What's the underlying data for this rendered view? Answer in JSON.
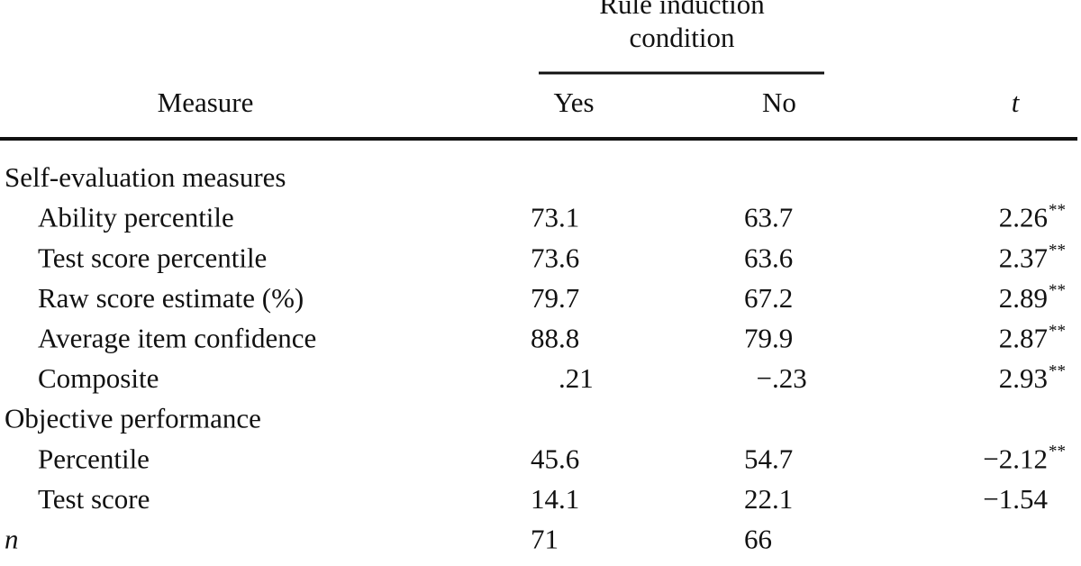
{
  "table": {
    "group_header": [
      "Rule induction",
      "condition"
    ],
    "columns": [
      "Measure",
      "Yes",
      "No",
      "t"
    ],
    "sections": [
      {
        "label": "Self-evaluation measures",
        "rows": [
          {
            "measure": "Ability percentile",
            "yes": "73.1",
            "no": "63.7",
            "t": "2.26",
            "sig": "**"
          },
          {
            "measure": "Test score percentile",
            "yes": "73.6",
            "no": "63.6",
            "t": "2.37",
            "sig": "**"
          },
          {
            "measure": "Raw score estimate (%)",
            "yes": "79.7",
            "no": "67.2",
            "t": "2.89",
            "sig": "**"
          },
          {
            "measure": "Average item confidence",
            "yes": "88.8",
            "no": "79.9",
            "t": "2.87",
            "sig": "**"
          },
          {
            "measure": "Composite",
            "yes": ".21",
            "no": "−.23",
            "t": "2.93",
            "sig": "**"
          }
        ]
      },
      {
        "label": "Objective performance",
        "rows": [
          {
            "measure": "Percentile",
            "yes": "45.6",
            "no": "54.7",
            "t": "−2.12",
            "sig": "**"
          },
          {
            "measure": "Test score",
            "yes": "14.1",
            "no": "22.1",
            "t": "−1.54"
          }
        ]
      }
    ],
    "n": {
      "label": "n",
      "yes": "71",
      "no": "66"
    }
  }
}
